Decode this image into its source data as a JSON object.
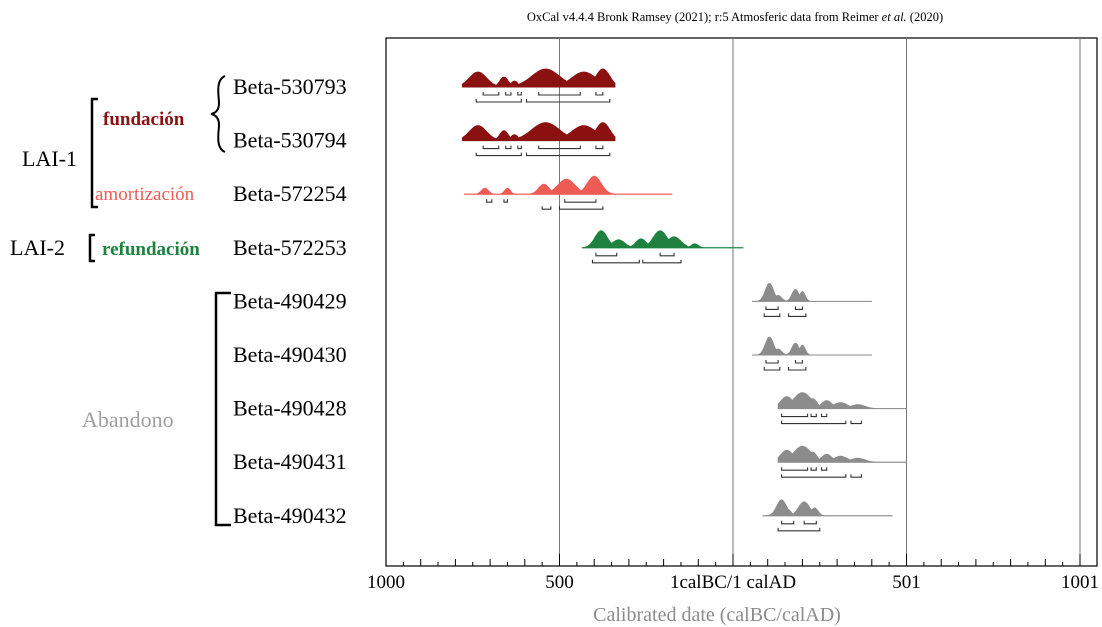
{
  "header_text": "OxCal v4.4.4 Bronk Ramsey (2021); r:5 Atmosferic data from Reimer",
  "header_et_al": "et al.",
  "header_year": "(2020)",
  "colors": {
    "fundacion": "#8B1111",
    "amortizacion": "#EE5B55",
    "refundacion": "#1E8140",
    "abandono": "#8C8C8C",
    "abandono_label": "#A0A0A0",
    "axis": "#000000"
  },
  "groups": {
    "lai1": "LAI-1",
    "lai2": "LAI-2",
    "fundacion": "fundación",
    "amortizacion": "amortización",
    "refundacion": "refundación",
    "abandono": "Abandono"
  },
  "chart_data": {
    "type": "area",
    "xlabel": "Calibrated date (calBC/calAD)",
    "tick_labels": [
      "1000",
      "500",
      "1calBC/1 calAD",
      "501",
      "1001"
    ],
    "xlim": [
      -1000,
      1001
    ],
    "grid": true,
    "samples": [
      {
        "name": "Beta-530793",
        "group": "fundacion",
        "range": [
          -780,
          -340
        ],
        "peaks": [
          [
            -735,
            0.75,
            25
          ],
          [
            -660,
            0.5,
            12
          ],
          [
            -630,
            0.3,
            10
          ],
          [
            -540,
            0.9,
            40
          ],
          [
            -430,
            0.75,
            35
          ],
          [
            -375,
            0.9,
            20
          ]
        ],
        "hpd68": [
          [
            -720,
            -675
          ],
          [
            -655,
            -640
          ],
          [
            -620,
            -610
          ],
          [
            -560,
            -440
          ],
          [
            -395,
            -375
          ]
        ],
        "hpd95": [
          [
            -740,
            -610
          ],
          [
            -595,
            -355
          ]
        ]
      },
      {
        "name": "Beta-530794",
        "group": "fundacion",
        "range": [
          -780,
          -340
        ],
        "peaks": [
          [
            -735,
            0.75,
            25
          ],
          [
            -660,
            0.5,
            12
          ],
          [
            -630,
            0.3,
            10
          ],
          [
            -540,
            0.9,
            40
          ],
          [
            -430,
            0.75,
            35
          ],
          [
            -375,
            0.9,
            20
          ]
        ],
        "hpd68": [
          [
            -720,
            -675
          ],
          [
            -655,
            -640
          ],
          [
            -620,
            -610
          ],
          [
            -560,
            -440
          ],
          [
            -395,
            -375
          ]
        ],
        "hpd95": [
          [
            -740,
            -610
          ],
          [
            -595,
            -355
          ]
        ]
      },
      {
        "name": "Beta-572254",
        "group": "amortizacion",
        "range": [
          -775,
          -175
        ],
        "peaks": [
          [
            -715,
            0.3,
            10
          ],
          [
            -650,
            0.3,
            8
          ],
          [
            -545,
            0.5,
            15
          ],
          [
            -480,
            0.75,
            25
          ],
          [
            -400,
            0.9,
            20
          ]
        ],
        "hpd68": [
          [
            -710,
            -695
          ],
          [
            -660,
            -650
          ],
          [
            -485,
            -395
          ]
        ],
        "hpd95": [
          [
            -550,
            -525
          ],
          [
            -500,
            -375
          ]
        ]
      },
      {
        "name": "Beta-572253",
        "group": "refundacion",
        "range": [
          -435,
          30
        ],
        "peaks": [
          [
            -380,
            0.85,
            18
          ],
          [
            -330,
            0.4,
            18
          ],
          [
            -265,
            0.45,
            15
          ],
          [
            -210,
            0.85,
            20
          ],
          [
            -170,
            0.55,
            20
          ],
          [
            -110,
            0.2,
            10
          ]
        ],
        "hpd68": [
          [
            -395,
            -335
          ],
          [
            -210,
            -170
          ]
        ],
        "hpd95": [
          [
            -405,
            -270
          ],
          [
            -260,
            -150
          ]
        ]
      },
      {
        "name": "Beta-490429",
        "group": "abandono",
        "range": [
          55,
          400
        ],
        "peaks": [
          [
            105,
            0.9,
            12
          ],
          [
            130,
            0.3,
            10
          ],
          [
            180,
            0.6,
            10
          ],
          [
            200,
            0.5,
            8
          ]
        ],
        "hpd68": [
          [
            95,
            130
          ],
          [
            180,
            200
          ]
        ],
        "hpd95": [
          [
            90,
            135
          ],
          [
            160,
            210
          ]
        ]
      },
      {
        "name": "Beta-490430",
        "group": "abandono",
        "range": [
          55,
          400
        ],
        "peaks": [
          [
            105,
            0.9,
            12
          ],
          [
            130,
            0.3,
            10
          ],
          [
            180,
            0.6,
            10
          ],
          [
            200,
            0.5,
            8
          ]
        ],
        "hpd68": [
          [
            95,
            130
          ],
          [
            180,
            200
          ]
        ],
        "hpd95": [
          [
            90,
            135
          ],
          [
            160,
            210
          ]
        ]
      },
      {
        "name": "Beta-490428",
        "group": "abandono",
        "range": [
          130,
          500
        ],
        "peaks": [
          [
            155,
            0.6,
            18
          ],
          [
            200,
            0.8,
            25
          ],
          [
            230,
            0.5,
            12
          ],
          [
            270,
            0.4,
            15
          ],
          [
            310,
            0.3,
            20
          ],
          [
            360,
            0.2,
            20
          ]
        ],
        "hpd68": [
          [
            140,
            215
          ],
          [
            225,
            240
          ],
          [
            255,
            270
          ]
        ],
        "hpd95": [
          [
            140,
            325
          ],
          [
            340,
            370
          ]
        ]
      },
      {
        "name": "Beta-490431",
        "group": "abandono",
        "range": [
          130,
          500
        ],
        "peaks": [
          [
            155,
            0.6,
            18
          ],
          [
            200,
            0.8,
            25
          ],
          [
            230,
            0.5,
            12
          ],
          [
            270,
            0.4,
            15
          ],
          [
            310,
            0.3,
            20
          ],
          [
            360,
            0.2,
            20
          ]
        ],
        "hpd68": [
          [
            140,
            215
          ],
          [
            225,
            240
          ],
          [
            255,
            270
          ]
        ],
        "hpd95": [
          [
            140,
            325
          ],
          [
            340,
            370
          ]
        ]
      },
      {
        "name": "Beta-490432",
        "group": "abandono",
        "range": [
          85,
          460
        ],
        "peaks": [
          [
            140,
            0.8,
            14
          ],
          [
            160,
            0.3,
            8
          ],
          [
            205,
            0.7,
            16
          ],
          [
            235,
            0.4,
            10
          ]
        ],
        "hpd68": [
          [
            140,
            175
          ],
          [
            205,
            240
          ]
        ],
        "hpd95": [
          [
            130,
            250
          ]
        ]
      }
    ]
  }
}
